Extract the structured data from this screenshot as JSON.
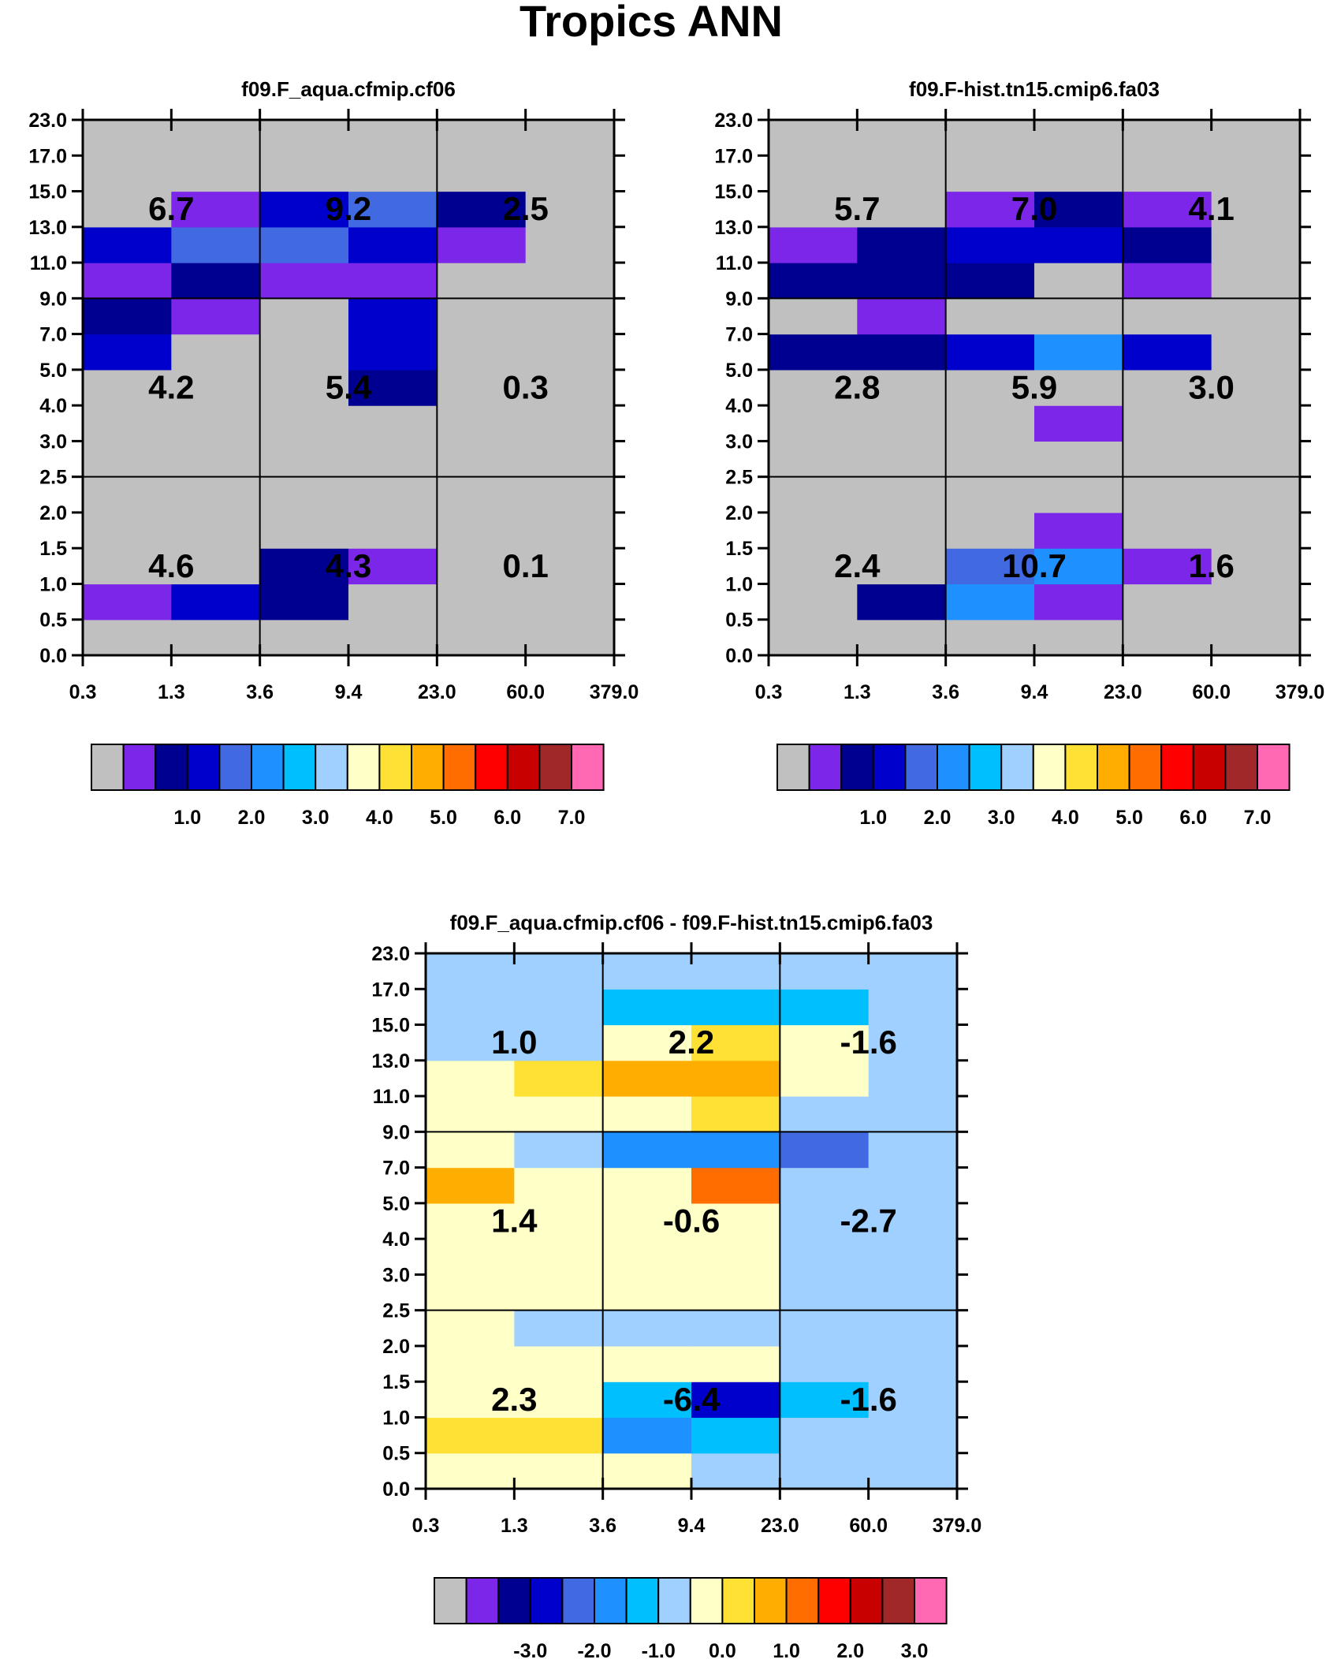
{
  "title": "Tropics ANN",
  "x_tick_labels": [
    "0.3",
    "1.3",
    "3.6",
    "9.4",
    "23.0",
    "60.0",
    "379.0"
  ],
  "y_tick_labels": [
    "0.0",
    "0.5",
    "1.0",
    "1.5",
    "2.0",
    "2.5",
    "3.0",
    "4.0",
    "5.0",
    "7.0",
    "9.0",
    "11.0",
    "13.0",
    "15.0",
    "17.0",
    "23.0"
  ],
  "colors": {
    "palette": [
      "#c0c0c0",
      "#7b26e8",
      "#000090",
      "#0000cd",
      "#4169e1",
      "#1e90ff",
      "#00bfff",
      "#a0d0ff",
      "#ffffc8",
      "#ffe135",
      "#ffad00",
      "#ff6c00",
      "#ff0000",
      "#c80000",
      "#a02828",
      "#ff69b4"
    ],
    "box_line": "#000000"
  },
  "chart_data": [
    {
      "type": "heatmap",
      "title": "f09.F_aqua.cfmip.cf06",
      "colorbar_labels": [
        "1.0",
        "2.0",
        "3.0",
        "4.0",
        "5.0",
        "6.0",
        "7.0"
      ],
      "cells": [
        [
          0,
          0,
          0,
          0,
          0,
          0
        ],
        [
          1,
          3,
          2,
          0,
          0,
          0
        ],
        [
          0,
          0,
          2,
          1,
          0,
          0
        ],
        [
          0,
          0,
          0,
          0,
          0,
          0
        ],
        [
          0,
          0,
          0,
          0,
          0,
          0
        ],
        [
          0,
          0,
          0,
          0,
          0,
          0
        ],
        [
          0,
          0,
          0,
          0,
          0,
          0
        ],
        [
          0,
          0,
          0,
          2,
          0,
          0
        ],
        [
          3,
          0,
          0,
          3,
          0,
          0
        ],
        [
          2,
          1,
          0,
          3,
          0,
          0
        ],
        [
          1,
          2,
          1,
          1,
          0,
          0
        ],
        [
          3,
          4,
          4,
          3,
          1,
          0
        ],
        [
          0,
          1,
          3,
          4,
          2,
          0
        ],
        [
          0,
          0,
          0,
          0,
          0,
          0
        ],
        [
          0,
          0,
          0,
          0,
          0,
          0
        ]
      ],
      "box_values": [
        [
          "4.6",
          "4.3",
          "0.1"
        ],
        [
          "4.2",
          "5.4",
          "0.3"
        ],
        [
          "6.7",
          "9.2",
          "2.5"
        ]
      ]
    },
    {
      "type": "heatmap",
      "title": "f09.F-hist.tn15.cmip6.fa03",
      "colorbar_labels": [
        "1.0",
        "2.0",
        "3.0",
        "4.0",
        "5.0",
        "6.0",
        "7.0"
      ],
      "cells": [
        [
          0,
          0,
          0,
          0,
          0,
          0
        ],
        [
          0,
          2,
          5,
          1,
          0,
          0
        ],
        [
          0,
          0,
          4,
          5,
          1,
          0
        ],
        [
          0,
          0,
          0,
          1,
          0,
          0
        ],
        [
          0,
          0,
          0,
          0,
          0,
          0
        ],
        [
          0,
          0,
          0,
          0,
          0,
          0
        ],
        [
          0,
          0,
          0,
          1,
          0,
          0
        ],
        [
          0,
          0,
          0,
          0,
          0,
          0
        ],
        [
          2,
          2,
          3,
          5,
          3,
          0
        ],
        [
          0,
          1,
          0,
          0,
          0,
          0
        ],
        [
          2,
          2,
          2,
          0,
          1,
          0
        ],
        [
          1,
          2,
          3,
          3,
          2,
          0
        ],
        [
          0,
          0,
          1,
          2,
          1,
          0
        ],
        [
          0,
          0,
          0,
          0,
          0,
          0
        ],
        [
          0,
          0,
          0,
          0,
          0,
          0
        ]
      ],
      "box_values": [
        [
          "2.4",
          "10.7",
          "1.6"
        ],
        [
          "2.8",
          "5.9",
          "3.0"
        ],
        [
          "5.7",
          "7.0",
          "4.1"
        ]
      ]
    },
    {
      "type": "heatmap",
      "title": "f09.F_aqua.cfmip.cf06 - f09.F-hist.tn15.cmip6.fa03",
      "colorbar_labels": [
        "-3.0",
        "-2.0",
        "-1.0",
        "0.0",
        "1.0",
        "2.0",
        "3.0"
      ],
      "cells": [
        [
          8,
          8,
          8,
          7,
          7,
          7
        ],
        [
          9,
          9,
          5,
          6,
          7,
          7
        ],
        [
          8,
          8,
          6,
          3,
          6,
          7
        ],
        [
          8,
          8,
          8,
          8,
          7,
          7
        ],
        [
          8,
          7,
          7,
          7,
          7,
          7
        ],
        [
          8,
          8,
          8,
          8,
          7,
          7
        ],
        [
          8,
          8,
          8,
          8,
          7,
          7
        ],
        [
          8,
          8,
          8,
          8,
          7,
          7
        ],
        [
          10,
          8,
          8,
          11,
          7,
          7
        ],
        [
          8,
          7,
          5,
          5,
          4,
          7
        ],
        [
          8,
          8,
          8,
          9,
          7,
          7
        ],
        [
          8,
          9,
          10,
          10,
          8,
          7
        ],
        [
          7,
          7,
          8,
          9,
          8,
          7
        ],
        [
          7,
          7,
          6,
          6,
          6,
          7
        ],
        [
          7,
          7,
          7,
          7,
          7,
          7
        ]
      ],
      "box_values": [
        [
          "2.3",
          "-6.4",
          "-1.6"
        ],
        [
          "1.4",
          "-0.6",
          "-2.7"
        ],
        [
          "1.0",
          "2.2",
          "-1.6"
        ]
      ]
    }
  ]
}
